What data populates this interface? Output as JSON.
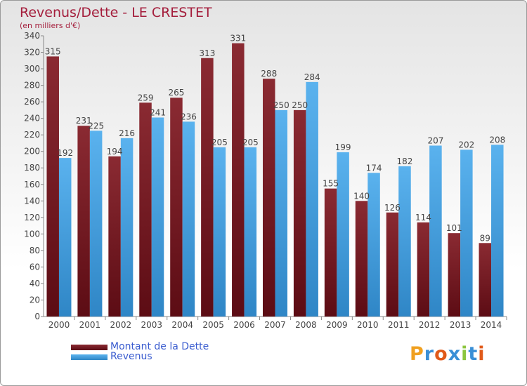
{
  "title": "Revenus/Dette - LE CRESTET",
  "subtitle": "(en milliers d'€)",
  "logo": {
    "text": "Proxiti"
  },
  "colors": {
    "debt": "#7a1c26",
    "revenue": "#4da6e8",
    "text": "#444444",
    "title": "#a41e3c"
  },
  "chart_data": {
    "type": "bar",
    "title": "Revenus/Dette - LE CRESTET",
    "subtitle": "(en milliers d'€)",
    "categories": [
      "2000",
      "2001",
      "2002",
      "2003",
      "2004",
      "2005",
      "2006",
      "2007",
      "2008",
      "2009",
      "2010",
      "2011",
      "2012",
      "2013",
      "2014"
    ],
    "series": [
      {
        "name": "Montant de la Dette",
        "values": [
          315,
          231,
          194,
          259,
          265,
          313,
          331,
          288,
          250,
          155,
          140,
          126,
          114,
          101,
          89
        ]
      },
      {
        "name": "Revenus",
        "values": [
          192,
          225,
          216,
          241,
          236,
          205,
          205,
          250,
          284,
          199,
          174,
          182,
          207,
          202,
          208
        ]
      }
    ],
    "ylim": [
      0,
      340
    ],
    "yticks": [
      0,
      20,
      40,
      60,
      80,
      100,
      120,
      140,
      160,
      180,
      200,
      220,
      240,
      260,
      280,
      300,
      320,
      340
    ],
    "grid": false,
    "legend": "bottom-left"
  }
}
